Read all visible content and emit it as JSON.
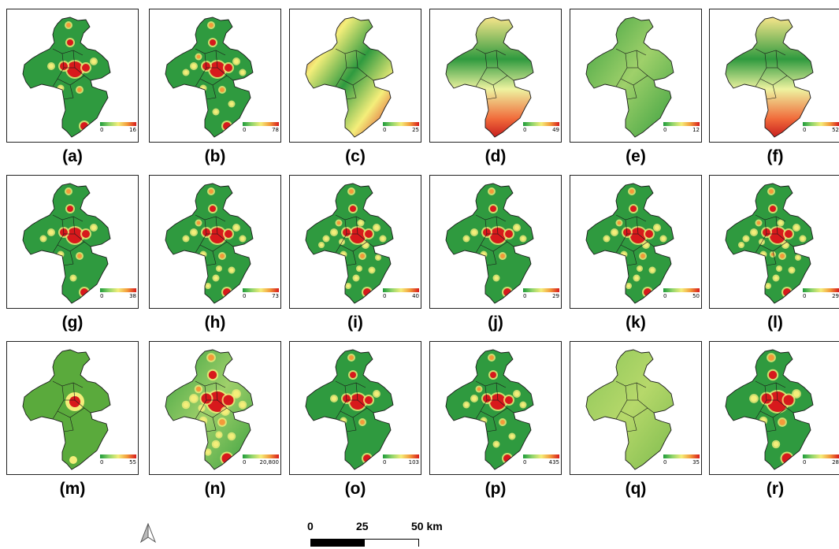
{
  "colors": {
    "low": "#1e9b3a",
    "mid": "#f4ee7a",
    "high": "#d7191c",
    "boundary": "#1a1a1a"
  },
  "panels": [
    {
      "label": "(a)",
      "min": "0",
      "max": "16"
    },
    {
      "label": "(b)",
      "min": "0",
      "max": "78"
    },
    {
      "label": "(c)",
      "min": "0",
      "max": "25"
    },
    {
      "label": "(d)",
      "min": "0",
      "max": "49"
    },
    {
      "label": "(e)",
      "min": "0",
      "max": "12"
    },
    {
      "label": "(f)",
      "min": "0",
      "max": "52"
    },
    {
      "label": "(g)",
      "min": "0",
      "max": "38"
    },
    {
      "label": "(h)",
      "min": "0",
      "max": "73"
    },
    {
      "label": "(i)",
      "min": "0",
      "max": "40"
    },
    {
      "label": "(j)",
      "min": "0",
      "max": "29"
    },
    {
      "label": "(k)",
      "min": "0",
      "max": "50"
    },
    {
      "label": "(l)",
      "min": "0",
      "max": "29"
    },
    {
      "label": "(m)",
      "min": "0",
      "max": "55"
    },
    {
      "label": "(n)",
      "min": "0",
      "max": "20,800"
    },
    {
      "label": "(o)",
      "min": "0",
      "max": "103"
    },
    {
      "label": "(p)",
      "min": "0",
      "max": "435"
    },
    {
      "label": "(q)",
      "min": "0",
      "max": "35"
    },
    {
      "label": "(r)",
      "min": "0",
      "max": "28"
    }
  ],
  "scalebar": {
    "labels": [
      "0",
      "25",
      "50 km"
    ]
  },
  "north_arrow": {
    "icon": "north-arrow-icon"
  }
}
